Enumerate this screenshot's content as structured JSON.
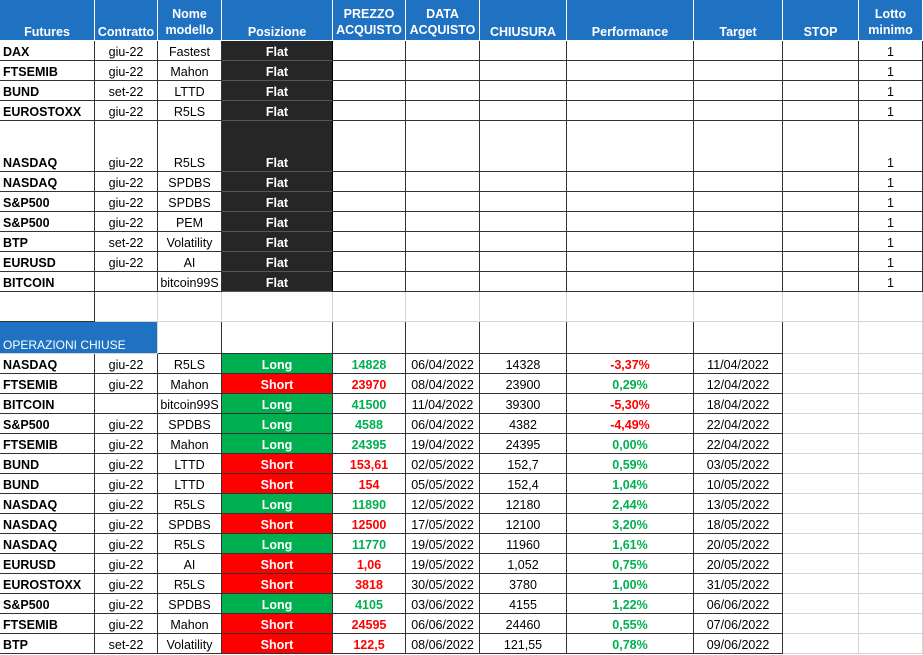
{
  "header": {
    "futures": "Futures",
    "contratto": "Contratto",
    "nome_modello": "Nome modello",
    "posizione": "Posizione",
    "prezzo_acquisto": "PREZZO ACQUISTO",
    "data_acquisto": "DATA ACQUISTO",
    "chiusura": "CHIUSURA",
    "performance": "Performance",
    "target": "Target",
    "stop": "STOP",
    "lotto_minimo": "Lotto minimo"
  },
  "open_rows": [
    {
      "future": "DAX",
      "contratto": "giu-22",
      "modello": "Fastest",
      "posizione": "Flat",
      "lotto": "1"
    },
    {
      "future": "FTSEMIB",
      "contratto": "giu-22",
      "modello": "Mahon",
      "posizione": "Flat",
      "lotto": "1"
    },
    {
      "future": "BUND",
      "contratto": "set-22",
      "modello": "LTTD",
      "posizione": "Flat",
      "lotto": "1"
    },
    {
      "future": "EUROSTOXX",
      "contratto": "giu-22",
      "modello": "R5LS",
      "posizione": "Flat",
      "lotto": "1"
    },
    {
      "future": "NASDAQ",
      "contratto": "giu-22",
      "modello": "R5LS",
      "posizione": "Flat",
      "lotto": "1"
    },
    {
      "future": "NASDAQ",
      "contratto": "giu-22",
      "modello": "SPDBS",
      "posizione": "Flat",
      "lotto": "1"
    },
    {
      "future": "S&P500",
      "contratto": "giu-22",
      "modello": "SPDBS",
      "posizione": "Flat",
      "lotto": "1"
    },
    {
      "future": "S&P500",
      "contratto": "giu-22",
      "modello": "PEM",
      "posizione": "Flat",
      "lotto": "1"
    },
    {
      "future": "BTP",
      "contratto": "set-22",
      "modello": "Volatility",
      "posizione": "Flat",
      "lotto": "1"
    },
    {
      "future": "EURUSD",
      "contratto": "giu-22",
      "modello": "AI",
      "posizione": "Flat",
      "lotto": "1"
    },
    {
      "future": "BITCOIN",
      "contratto": "",
      "modello": "bitcoin99S",
      "posizione": "Flat",
      "lotto": "1"
    }
  ],
  "closed_section_title": "OPERAZIONI CHIUSE",
  "closed_rows": [
    {
      "future": "NASDAQ",
      "contratto": "giu-22",
      "modello": "R5LS",
      "posizione": "Long",
      "prezzo": "14828",
      "data": "06/04/2022",
      "chiusura": "14328",
      "performance": "-3,37%",
      "target": "11/04/2022"
    },
    {
      "future": "FTSEMIB",
      "contratto": "giu-22",
      "modello": "Mahon",
      "posizione": "Short",
      "prezzo": "23970",
      "data": "08/04/2022",
      "chiusura": "23900",
      "performance": "0,29%",
      "target": "12/04/2022"
    },
    {
      "future": "BITCOIN",
      "contratto": "",
      "modello": "bitcoin99S",
      "posizione": "Long",
      "prezzo": "41500",
      "data": "11/04/2022",
      "chiusura": "39300",
      "performance": "-5,30%",
      "target": "18/04/2022"
    },
    {
      "future": "S&P500",
      "contratto": "giu-22",
      "modello": "SPDBS",
      "posizione": "Long",
      "prezzo": "4588",
      "data": "06/04/2022",
      "chiusura": "4382",
      "performance": "-4,49%",
      "target": "22/04/2022"
    },
    {
      "future": "FTSEMIB",
      "contratto": "giu-22",
      "modello": "Mahon",
      "posizione": "Long",
      "prezzo": "24395",
      "data": "19/04/2022",
      "chiusura": "24395",
      "performance": "0,00%",
      "target": "22/04/2022"
    },
    {
      "future": "BUND",
      "contratto": "giu-22",
      "modello": "LTTD",
      "posizione": "Short",
      "prezzo": "153,61",
      "data": "02/05/2022",
      "chiusura": "152,7",
      "performance": "0,59%",
      "target": "03/05/2022"
    },
    {
      "future": "BUND",
      "contratto": "giu-22",
      "modello": "LTTD",
      "posizione": "Short",
      "prezzo": "154",
      "data": "05/05/2022",
      "chiusura": "152,4",
      "performance": "1,04%",
      "target": "10/05/2022"
    },
    {
      "future": "NASDAQ",
      "contratto": "giu-22",
      "modello": "R5LS",
      "posizione": "Long",
      "prezzo": "11890",
      "data": "12/05/2022",
      "chiusura": "12180",
      "performance": "2,44%",
      "target": "13/05/2022"
    },
    {
      "future": "NASDAQ",
      "contratto": "giu-22",
      "modello": "SPDBS",
      "posizione": "Short",
      "prezzo": "12500",
      "data": "17/05/2022",
      "chiusura": "12100",
      "performance": "3,20%",
      "target": "18/05/2022"
    },
    {
      "future": "NASDAQ",
      "contratto": "giu-22",
      "modello": "R5LS",
      "posizione": "Long",
      "prezzo": "11770",
      "data": "19/05/2022",
      "chiusura": "11960",
      "performance": "1,61%",
      "target": "20/05/2022"
    },
    {
      "future": "EURUSD",
      "contratto": "giu-22",
      "modello": "AI",
      "posizione": "Short",
      "prezzo": "1,06",
      "data": "19/05/2022",
      "chiusura": "1,052",
      "performance": "0,75%",
      "target": "20/05/2022"
    },
    {
      "future": "EUROSTOXX",
      "contratto": "giu-22",
      "modello": "R5LS",
      "posizione": "Short",
      "prezzo": "3818",
      "data": "30/05/2022",
      "chiusura": "3780",
      "performance": "1,00%",
      "target": "31/05/2022"
    },
    {
      "future": "S&P500",
      "contratto": "giu-22",
      "modello": "SPDBS",
      "posizione": "Long",
      "prezzo": "4105",
      "data": "03/06/2022",
      "chiusura": "4155",
      "performance": "1,22%",
      "target": "06/06/2022"
    },
    {
      "future": "FTSEMIB",
      "contratto": "giu-22",
      "modello": "Mahon",
      "posizione": "Short",
      "prezzo": "24595",
      "data": "06/06/2022",
      "chiusura": "24460",
      "performance": "0,55%",
      "target": "07/06/2022"
    },
    {
      "future": "BTP",
      "contratto": "set-22",
      "modello": "Volatility",
      "posizione": "Short",
      "prezzo": "122,5",
      "data": "08/06/2022",
      "chiusura": "121,55",
      "performance": "0,78%",
      "target": "09/06/2022"
    }
  ],
  "colors": {
    "header_blue": "#1f71c2",
    "flat_dark": "#262626",
    "long_green": "#00b050",
    "short_red": "#ff0000"
  }
}
